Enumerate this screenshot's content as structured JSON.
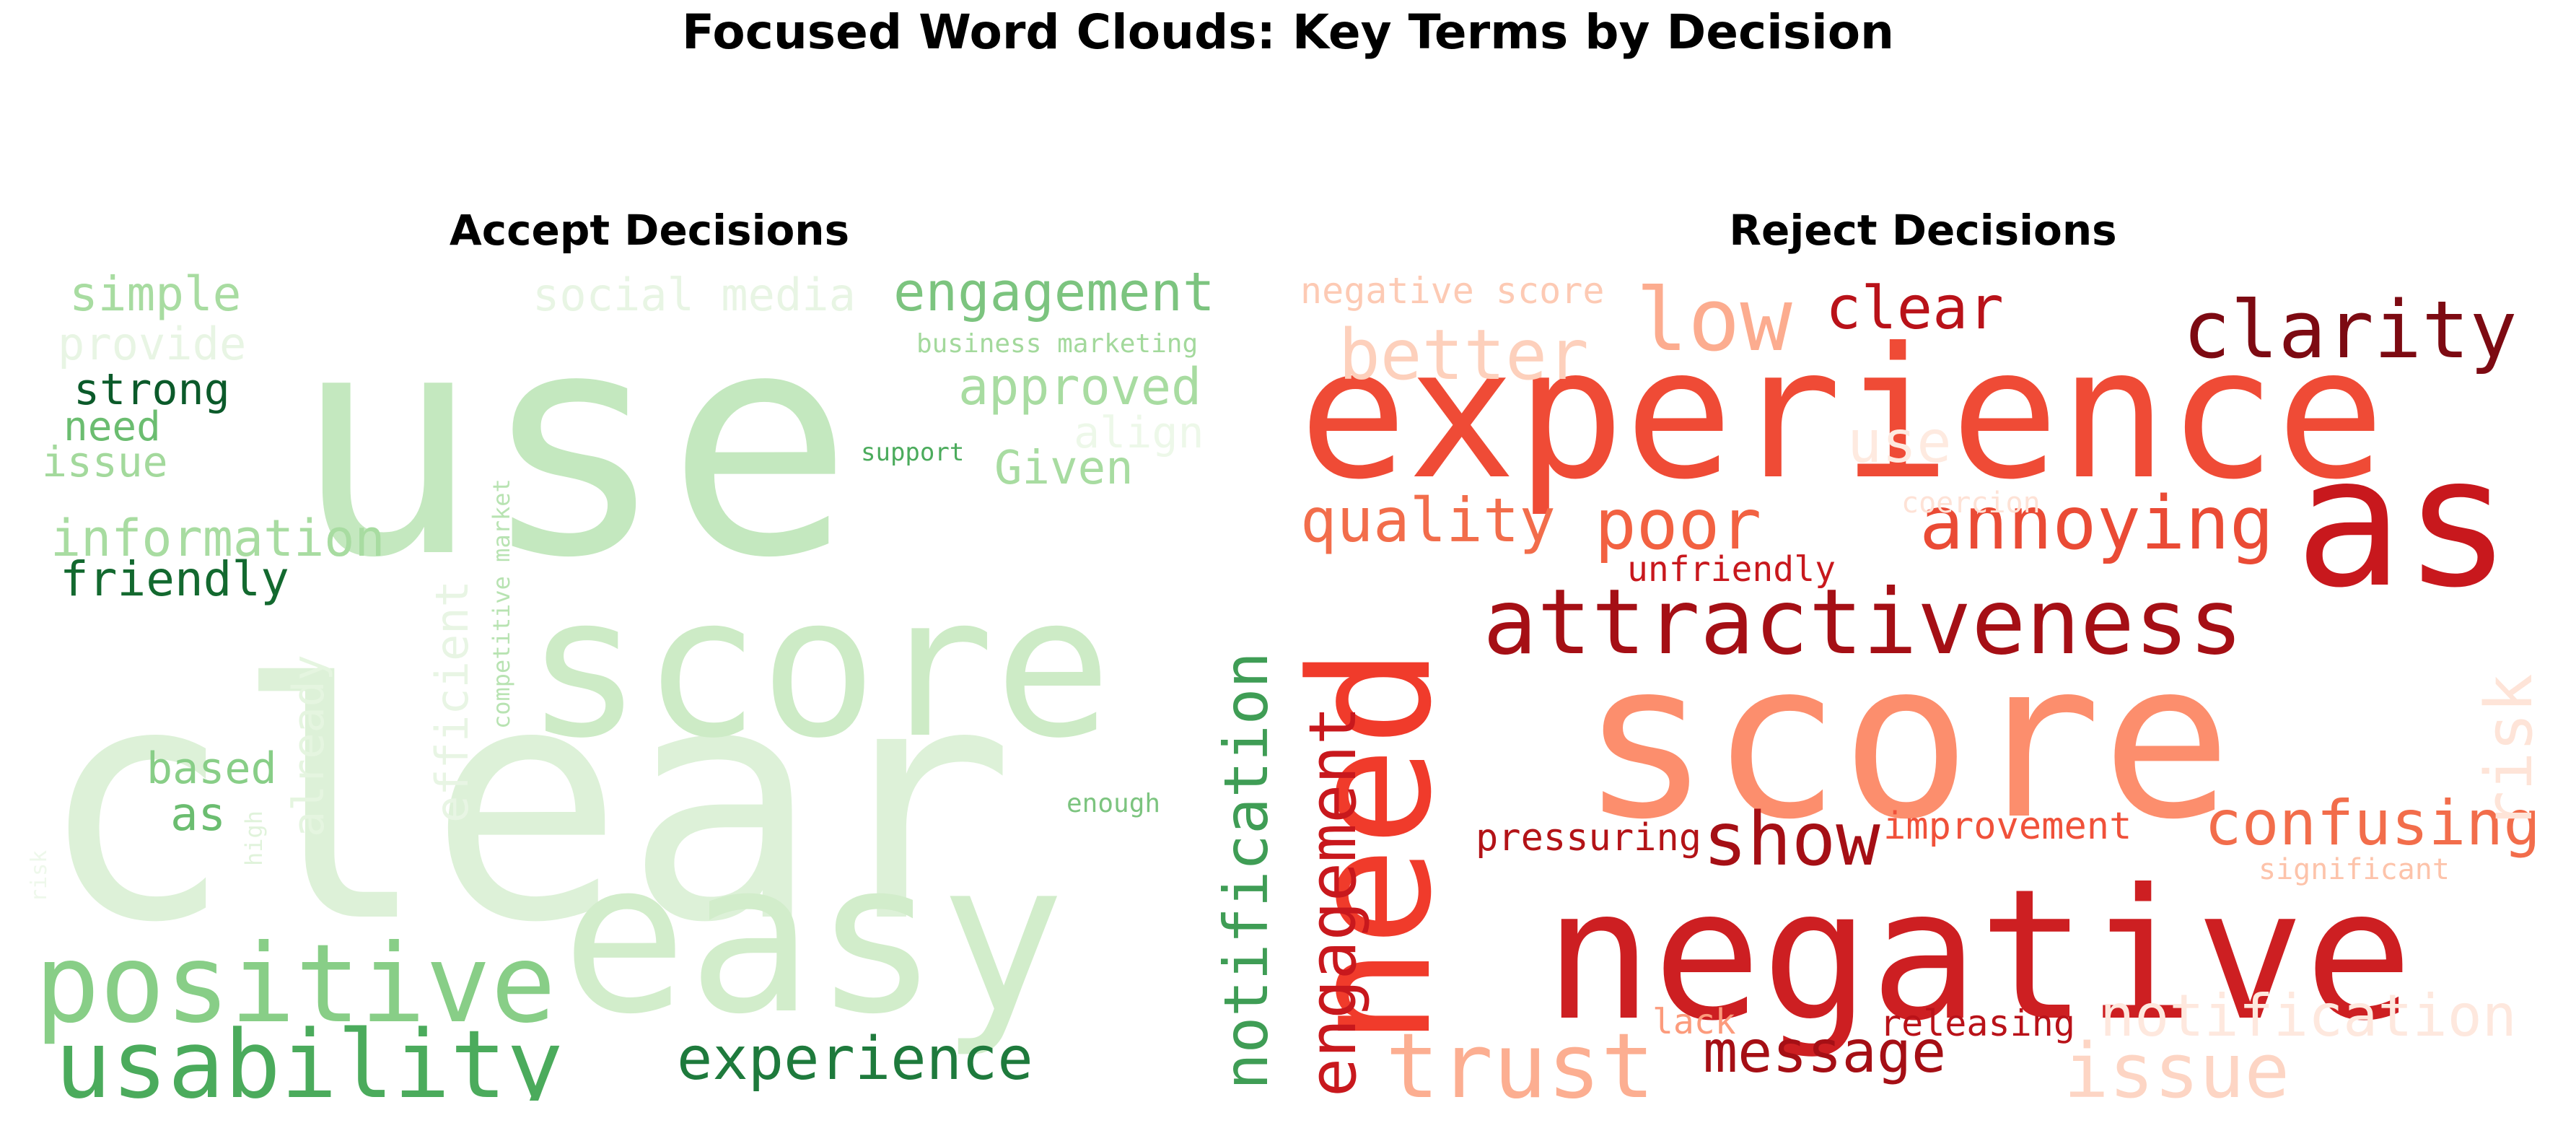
{
  "title": "Focused Word Clouds: Key Terms by Decision",
  "panels": {
    "accept": {
      "title": "Accept Decisions",
      "words": [
        {
          "text": "use",
          "color": "#c4e8bf"
        },
        {
          "text": "clear",
          "color": "#ddf1d8"
        },
        {
          "text": "score",
          "color": "#cdebc6"
        },
        {
          "text": "easy",
          "color": "#d2edcb"
        },
        {
          "text": "positive",
          "color": "#88ce87"
        },
        {
          "text": "usability",
          "color": "#4bab5c"
        },
        {
          "text": "experience",
          "color": "#1e7a3c"
        },
        {
          "text": "notification",
          "color": "#3f9d55"
        },
        {
          "text": "simple",
          "color": "#a8dca1"
        },
        {
          "text": "provide",
          "color": "#e8f5e4"
        },
        {
          "text": "strong",
          "color": "#0b5a2a"
        },
        {
          "text": "need",
          "color": "#6bbd70"
        },
        {
          "text": "issue",
          "color": "#a3d99c"
        },
        {
          "text": "information",
          "color": "#a8dca1"
        },
        {
          "text": "friendly",
          "color": "#13692f"
        },
        {
          "text": "based",
          "color": "#88ce87"
        },
        {
          "text": "as",
          "color": "#6bbd70"
        },
        {
          "text": "social media",
          "color": "#e8f5e4"
        },
        {
          "text": "engagement",
          "color": "#7cc47f"
        },
        {
          "text": "business marketing",
          "color": "#a3d99c"
        },
        {
          "text": "approved",
          "color": "#a8dca1"
        },
        {
          "text": "align",
          "color": "#edf8e9"
        },
        {
          "text": "Given",
          "color": "#a8dca1"
        },
        {
          "text": "support",
          "color": "#4bab5c"
        },
        {
          "text": "enough",
          "color": "#7cc47f"
        },
        {
          "text": "competitive market",
          "color": "#b8e3b2"
        },
        {
          "text": "efficient",
          "color": "#e8f5e4"
        },
        {
          "text": "already",
          "color": "#e5f5e0"
        },
        {
          "text": "high",
          "color": "#e0f3db"
        },
        {
          "text": "risk",
          "color": "#eef8eb"
        }
      ]
    },
    "reject": {
      "title": "Reject Decisions",
      "words": [
        {
          "text": "experience",
          "color": "#ef4b36"
        },
        {
          "text": "score",
          "color": "#fc8e6d"
        },
        {
          "text": "negative",
          "color": "#cd1f22"
        },
        {
          "text": "need",
          "color": "#f03b2b"
        },
        {
          "text": "as",
          "color": "#c8181d"
        },
        {
          "text": "attractiveness",
          "color": "#a50f15"
        },
        {
          "text": "clarity",
          "color": "#7d0a12"
        },
        {
          "text": "low",
          "color": "#fcac8f"
        },
        {
          "text": "better",
          "color": "#fdd0bc"
        },
        {
          "text": "clear",
          "color": "#b91219"
        },
        {
          "text": "negative score",
          "color": "#fdcab4"
        },
        {
          "text": "poor",
          "color": "#f26141"
        },
        {
          "text": "quality",
          "color": "#f26d4b"
        },
        {
          "text": "annoying",
          "color": "#ea4b35"
        },
        {
          "text": "unfriendly",
          "color": "#c8181d"
        },
        {
          "text": "coercion",
          "color": "#fee2d6"
        },
        {
          "text": "use",
          "color": "#feeae0"
        },
        {
          "text": "engagement",
          "color": "#c8181d"
        },
        {
          "text": "pressuring",
          "color": "#b31317"
        },
        {
          "text": "show",
          "color": "#a50f15"
        },
        {
          "text": "improvement",
          "color": "#f0513a"
        },
        {
          "text": "confusing",
          "color": "#f26d4b"
        },
        {
          "text": "significant",
          "color": "#fdc3aa"
        },
        {
          "text": "trust",
          "color": "#fcae91"
        },
        {
          "text": "message",
          "color": "#a50f15"
        },
        {
          "text": "lack",
          "color": "#fc9b7c"
        },
        {
          "text": "releasing",
          "color": "#b91219"
        },
        {
          "text": "notification",
          "color": "#fee8de"
        },
        {
          "text": "issue",
          "color": "#fdd5c4"
        },
        {
          "text": "risk",
          "color": "#fee4d8"
        }
      ]
    }
  }
}
